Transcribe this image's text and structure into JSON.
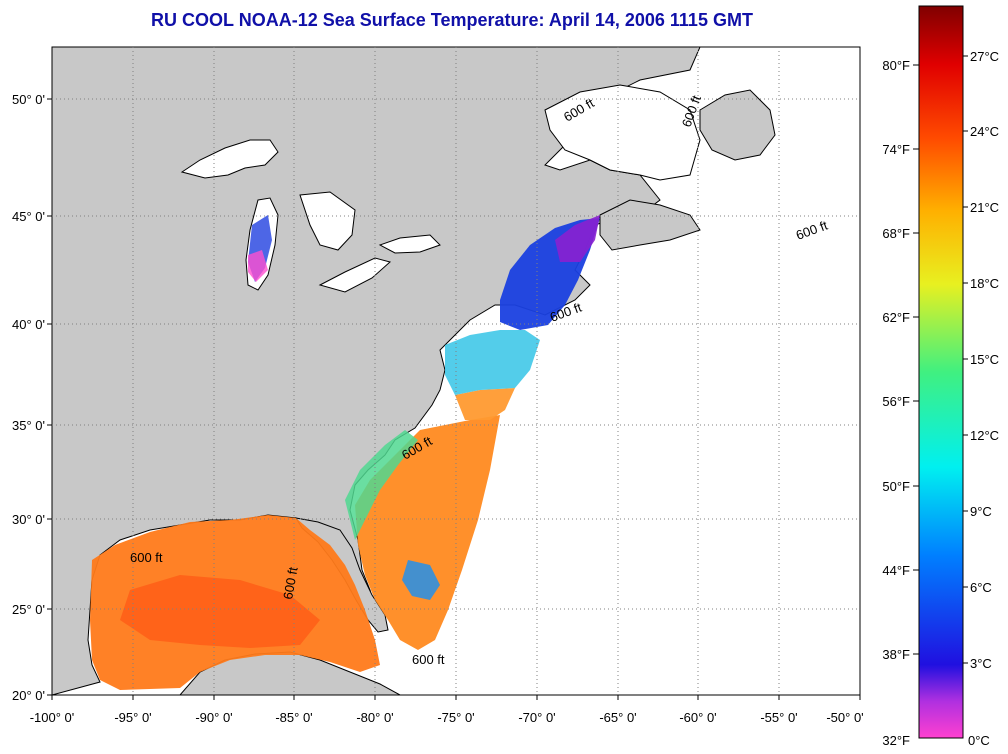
{
  "title": "RU COOL  NOAA-12  Sea Surface Temperature:  April 14, 2006 1115 GMT",
  "map": {
    "lon_ticks": [
      "-100° 0'",
      "-95° 0'",
      "-90° 0'",
      "-85° 0'",
      "-80° 0'",
      "-75° 0'",
      "-70° 0'",
      "-65° 0'",
      "-60° 0'",
      "-55° 0'",
      "-50° 0'"
    ],
    "lat_ticks": [
      "50° 0'",
      "45° 0'",
      "40° 0'",
      "35° 0'",
      "30° 0'",
      "25° 0'",
      "20° 0'"
    ],
    "contour_labels": [
      "600 ft",
      "600 ft",
      "600 ft",
      "600 ft",
      "600 ft",
      "600 ft",
      "600 ft",
      "600 ft"
    ],
    "colors": {
      "land": "#c8c8c8",
      "ocean_nodata": "#ffffff",
      "coast": "#000000",
      "grid": "#808080"
    }
  },
  "colorbar": {
    "fahrenheit_labels": [
      "80°F",
      "74°F",
      "68°F",
      "62°F",
      "56°F",
      "50°F",
      "44°F",
      "38°F",
      "32°F"
    ],
    "celsius_labels": [
      "27°C",
      "24°C",
      "21°C",
      "18°C",
      "15°C",
      "12°C",
      "9°C",
      "6°C",
      "3°C",
      "0°C"
    ],
    "gradient_stops": [
      "#ff40d0",
      "#8020e0",
      "#2020e0",
      "#00a0ff",
      "#00f0f0",
      "#40f080",
      "#e0f020",
      "#ffb000",
      "#ff4000",
      "#d00000",
      "#800000"
    ]
  }
}
